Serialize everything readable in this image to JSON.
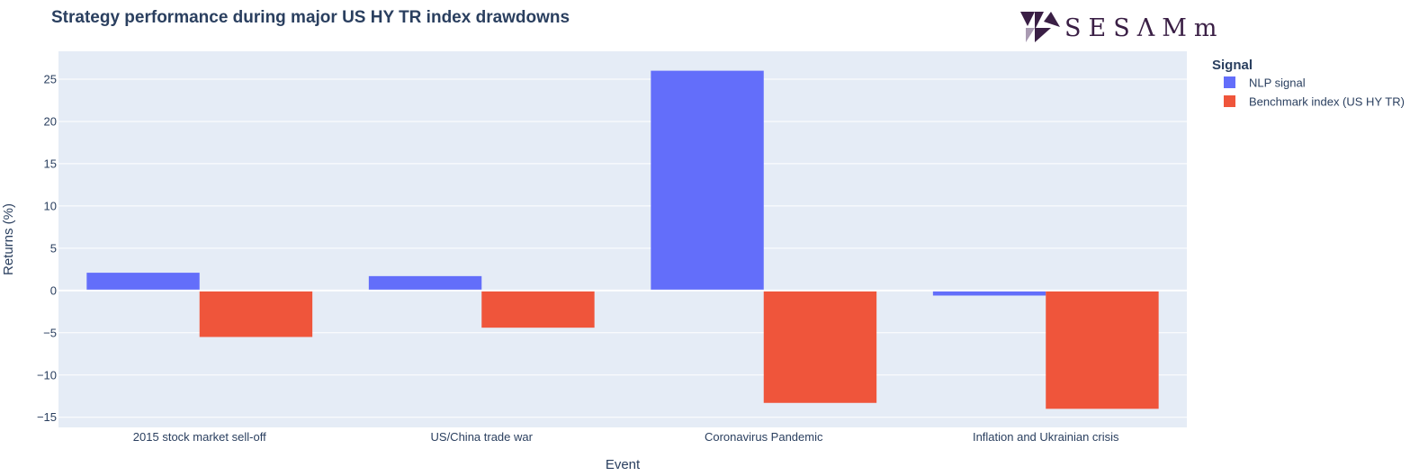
{
  "logo": {
    "text": "SESΛMm",
    "color": "#3a1f45",
    "accent": "#a99ab2"
  },
  "colors": {
    "plot_bg": "#e5ecf6",
    "grid": "#ffffff",
    "text": "#2a3f5f"
  },
  "chart_data": {
    "type": "bar",
    "title": "Strategy performance during major US HY TR index drawdowns",
    "xlabel": "Event",
    "ylabel": "Returns (%)",
    "ylim": [
      -16.2,
      28.3
    ],
    "yticks": [
      -15,
      -10,
      -5,
      0,
      5,
      10,
      15,
      20,
      25
    ],
    "grid": true,
    "legend": {
      "title": "Signal",
      "position": "right"
    },
    "categories": [
      "2015 stock market sell-off",
      "US/China trade war",
      "Coronavirus Pandemic",
      "Inflation and Ukrainian crisis"
    ],
    "series": [
      {
        "name": "NLP signal",
        "color": "#636efa",
        "values": [
          2.1,
          1.7,
          26.0,
          -0.6
        ]
      },
      {
        "name": "Benchmark index (US HY TR)",
        "color": "#ef553b",
        "values": [
          -5.5,
          -4.4,
          -13.3,
          -14.0
        ]
      }
    ]
  }
}
